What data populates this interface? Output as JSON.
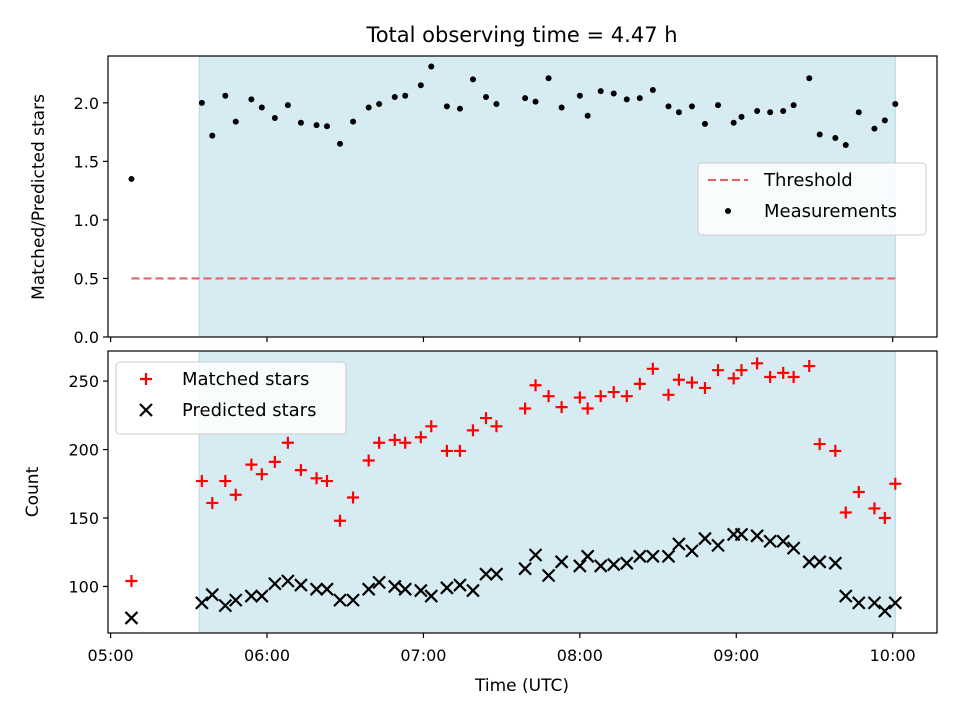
{
  "chart_data": [
    {
      "type": "scatter",
      "title": "Total observing time = 4.47 h",
      "xlabel": "",
      "ylabel": "Matched/Predicted stars",
      "ylim": [
        0,
        2.4
      ],
      "yticks": [
        "0.0",
        "0.5",
        "1.0",
        "1.5",
        "2.0"
      ],
      "xlim": [
        "04:59",
        "10:17"
      ],
      "grid": false,
      "legend_position": "center-right",
      "shaded_interval": [
        "05:34",
        "10:01"
      ],
      "threshold": {
        "name": "Threshold",
        "y": 0.5,
        "x": [
          "05:08",
          "10:01"
        ],
        "color": "#e06666"
      },
      "series": [
        {
          "name": "Measurements",
          "color": "#000000",
          "points": [
            [
              "05:08",
              1.35
            ],
            [
              "05:35",
              2.0
            ],
            [
              "05:39",
              1.72
            ],
            [
              "05:44",
              2.06
            ],
            [
              "05:48",
              1.84
            ],
            [
              "05:54",
              2.03
            ],
            [
              "05:58",
              1.96
            ],
            [
              "06:03",
              1.87
            ],
            [
              "06:08",
              1.98
            ],
            [
              "06:13",
              1.83
            ],
            [
              "06:19",
              1.81
            ],
            [
              "06:23",
              1.8
            ],
            [
              "06:28",
              1.65
            ],
            [
              "06:33",
              1.84
            ],
            [
              "06:39",
              1.96
            ],
            [
              "06:43",
              1.99
            ],
            [
              "06:49",
              2.05
            ],
            [
              "06:53",
              2.06
            ],
            [
              "06:59",
              2.15
            ],
            [
              "07:03",
              2.31
            ],
            [
              "07:09",
              1.97
            ],
            [
              "07:14",
              1.95
            ],
            [
              "07:19",
              2.2
            ],
            [
              "07:24",
              2.05
            ],
            [
              "07:28",
              1.99
            ],
            [
              "07:39",
              2.04
            ],
            [
              "07:43",
              2.01
            ],
            [
              "07:48",
              2.21
            ],
            [
              "07:53",
              1.96
            ],
            [
              "08:00",
              2.06
            ],
            [
              "08:03",
              1.89
            ],
            [
              "08:08",
              2.1
            ],
            [
              "08:13",
              2.08
            ],
            [
              "08:18",
              2.03
            ],
            [
              "08:23",
              2.04
            ],
            [
              "08:28",
              2.11
            ],
            [
              "08:34",
              1.97
            ],
            [
              "08:38",
              1.92
            ],
            [
              "08:43",
              1.97
            ],
            [
              "08:48",
              1.82
            ],
            [
              "08:53",
              1.98
            ],
            [
              "08:59",
              1.83
            ],
            [
              "09:02",
              1.88
            ],
            [
              "09:08",
              1.93
            ],
            [
              "09:13",
              1.92
            ],
            [
              "09:18",
              1.93
            ],
            [
              "09:22",
              1.98
            ],
            [
              "09:28",
              2.21
            ],
            [
              "09:32",
              1.73
            ],
            [
              "09:38",
              1.7
            ],
            [
              "09:42",
              1.64
            ],
            [
              "09:47",
              1.92
            ],
            [
              "09:53",
              1.78
            ],
            [
              "09:57",
              1.85
            ],
            [
              "10:01",
              1.99
            ]
          ]
        }
      ]
    },
    {
      "type": "scatter",
      "title": "",
      "xlabel": "Time (UTC)",
      "ylabel": "Count",
      "ylim": [
        66,
        272
      ],
      "yticks": [
        "100",
        "150",
        "200",
        "250"
      ],
      "xlim": [
        "04:59",
        "10:17"
      ],
      "xticks": [
        "05:00",
        "06:00",
        "07:00",
        "08:00",
        "09:00",
        "10:00"
      ],
      "grid": false,
      "legend_position": "top-left",
      "shaded_interval": [
        "05:34",
        "10:01"
      ],
      "series": [
        {
          "name": "Matched stars",
          "marker": "plus",
          "color": "#ff0000",
          "points": [
            [
              "05:08",
              104
            ],
            [
              "05:35",
              177
            ],
            [
              "05:39",
              161
            ],
            [
              "05:44",
              177
            ],
            [
              "05:48",
              167
            ],
            [
              "05:54",
              189
            ],
            [
              "05:58",
              182
            ],
            [
              "06:03",
              191
            ],
            [
              "06:08",
              205
            ],
            [
              "06:13",
              185
            ],
            [
              "06:19",
              179
            ],
            [
              "06:23",
              177
            ],
            [
              "06:28",
              148
            ],
            [
              "06:33",
              165
            ],
            [
              "06:39",
              192
            ],
            [
              "06:43",
              205
            ],
            [
              "06:49",
              207
            ],
            [
              "06:53",
              205
            ],
            [
              "06:59",
              209
            ],
            [
              "07:03",
              217
            ],
            [
              "07:09",
              199
            ],
            [
              "07:14",
              199
            ],
            [
              "07:19",
              214
            ],
            [
              "07:24",
              223
            ],
            [
              "07:28",
              217
            ],
            [
              "07:39",
              230
            ],
            [
              "07:43",
              247
            ],
            [
              "07:48",
              239
            ],
            [
              "07:53",
              231
            ],
            [
              "08:00",
              238
            ],
            [
              "08:03",
              230
            ],
            [
              "08:08",
              239
            ],
            [
              "08:13",
              242
            ],
            [
              "08:18",
              239
            ],
            [
              "08:23",
              248
            ],
            [
              "08:28",
              259
            ],
            [
              "08:34",
              240
            ],
            [
              "08:38",
              251
            ],
            [
              "08:43",
              249
            ],
            [
              "08:48",
              245
            ],
            [
              "08:53",
              258
            ],
            [
              "08:59",
              252
            ],
            [
              "09:02",
              258
            ],
            [
              "09:08",
              263
            ],
            [
              "09:13",
              253
            ],
            [
              "09:18",
              256
            ],
            [
              "09:22",
              253
            ],
            [
              "09:28",
              261
            ],
            [
              "09:32",
              204
            ],
            [
              "09:38",
              199
            ],
            [
              "09:42",
              154
            ],
            [
              "09:47",
              169
            ],
            [
              "09:53",
              157
            ],
            [
              "09:57",
              150
            ],
            [
              "10:01",
              175
            ]
          ]
        },
        {
          "name": "Predicted stars",
          "marker": "x",
          "color": "#000000",
          "points": [
            [
              "05:08",
              77
            ],
            [
              "05:35",
              88
            ],
            [
              "05:39",
              94
            ],
            [
              "05:44",
              86
            ],
            [
              "05:48",
              90
            ],
            [
              "05:54",
              93
            ],
            [
              "05:58",
              93
            ],
            [
              "06:03",
              102
            ],
            [
              "06:08",
              104
            ],
            [
              "06:13",
              101
            ],
            [
              "06:19",
              98
            ],
            [
              "06:23",
              98
            ],
            [
              "06:28",
              90
            ],
            [
              "06:33",
              90
            ],
            [
              "06:39",
              98
            ],
            [
              "06:43",
              103
            ],
            [
              "06:49",
              100
            ],
            [
              "06:53",
              98
            ],
            [
              "06:59",
              97
            ],
            [
              "07:03",
              93
            ],
            [
              "07:09",
              99
            ],
            [
              "07:14",
              101
            ],
            [
              "07:19",
              97
            ],
            [
              "07:24",
              109
            ],
            [
              "07:28",
              109
            ],
            [
              "07:39",
              113
            ],
            [
              "07:43",
              123
            ],
            [
              "07:48",
              108
            ],
            [
              "07:53",
              118
            ],
            [
              "08:00",
              115
            ],
            [
              "08:03",
              122
            ],
            [
              "08:08",
              115
            ],
            [
              "08:13",
              116
            ],
            [
              "08:18",
              117
            ],
            [
              "08:23",
              122
            ],
            [
              "08:28",
              122
            ],
            [
              "08:34",
              122
            ],
            [
              "08:38",
              131
            ],
            [
              "08:43",
              126
            ],
            [
              "08:48",
              135
            ],
            [
              "08:53",
              130
            ],
            [
              "08:59",
              138
            ],
            [
              "09:02",
              138
            ],
            [
              "09:08",
              137
            ],
            [
              "09:13",
              133
            ],
            [
              "09:18",
              133
            ],
            [
              "09:22",
              128
            ],
            [
              "09:28",
              118
            ],
            [
              "09:32",
              118
            ],
            [
              "09:38",
              117
            ],
            [
              "09:42",
              93
            ],
            [
              "09:47",
              88
            ],
            [
              "09:53",
              88
            ],
            [
              "09:57",
              82
            ],
            [
              "10:01",
              88
            ]
          ]
        }
      ]
    }
  ]
}
